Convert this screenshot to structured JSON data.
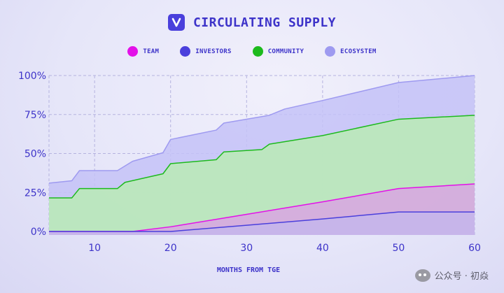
{
  "header": {
    "title": "CIRCULATING SUPPLY",
    "logo_text": "V"
  },
  "legend": [
    {
      "label": "TEAM",
      "color": "#e311e8"
    },
    {
      "label": "INVESTORS",
      "color": "#4a3fdc"
    },
    {
      "label": "COMMUNITY",
      "color": "#1dba1d"
    },
    {
      "label": "ECOSYSTEM",
      "color": "#9e9af0"
    }
  ],
  "watermark": "公众号 · 初焱",
  "chart_data": {
    "type": "area",
    "title": "CIRCULATING SUPPLY",
    "xlabel": "MONTHS FROM TGE",
    "ylabel": "",
    "xlim": [
      4,
      60
    ],
    "ylim": [
      0,
      100
    ],
    "x_ticks": [
      10,
      20,
      30,
      40,
      50,
      60
    ],
    "y_ticks": [
      0,
      25,
      50,
      75,
      100
    ],
    "y_tick_labels": [
      "0%",
      "25%",
      "50%",
      "75%",
      "100%"
    ],
    "grid": true,
    "legend_position": "top-center",
    "stacked_cumulative": true,
    "series": [
      {
        "name": "TEAM",
        "color": "#e311e8",
        "x": [
          4,
          15,
          20,
          30,
          40,
          50,
          60
        ],
        "y": [
          0,
          0,
          3,
          11,
          19,
          27.5,
          30.5
        ]
      },
      {
        "name": "INVESTORS",
        "color": "#4a3fdc",
        "x": [
          4,
          15,
          20,
          30,
          40,
          50,
          60
        ],
        "y": [
          0,
          0,
          0,
          4,
          8,
          12.5,
          12.5
        ]
      },
      {
        "name": "COMMUNITY",
        "color": "#1dba1d",
        "x": [
          4,
          7,
          8,
          13,
          14,
          19,
          20,
          26,
          27,
          32,
          33,
          40,
          50,
          60
        ],
        "y": [
          21.5,
          21.5,
          27.5,
          27.5,
          31.5,
          37,
          43.5,
          46,
          51,
          52.5,
          56,
          61.5,
          72,
          74.5
        ]
      },
      {
        "name": "ECOSYSTEM",
        "color": "#9e9af0",
        "x": [
          4,
          7,
          8,
          13,
          15,
          19,
          20,
          26,
          27,
          33,
          35,
          40,
          50,
          60
        ],
        "y": [
          31,
          32.5,
          39,
          39,
          45,
          50.5,
          59,
          65,
          69.5,
          74.5,
          78.5,
          84,
          95.5,
          100
        ]
      }
    ]
  }
}
